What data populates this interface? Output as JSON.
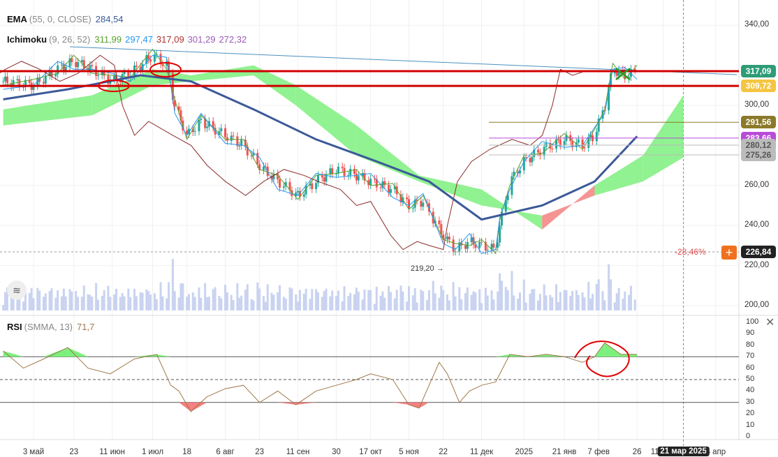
{
  "legend": {
    "ema": {
      "name": "EMA",
      "params": "(55, 0, CLOSE)",
      "value": "284,54"
    },
    "ichimoku": {
      "name": "Ichimoku",
      "params": "(9, 26, 52)",
      "values": [
        "311,99",
        "297,47",
        "317,09",
        "301,29",
        "272,32"
      ]
    },
    "rsi": {
      "name": "RSI",
      "params": "(SMMA, 13)",
      "value": "71,7"
    }
  },
  "colors": {
    "up": "#26a69a",
    "down": "#ef5350",
    "ema": "#3b5998",
    "tenkan": "#5aa02c",
    "kijun": "#2196f3",
    "chikou": "#8b2a2a",
    "cloud_up": "#7cf07c",
    "cloud_down": "#f48080",
    "rsi": "#a0784a",
    "drawing": "#e00000"
  },
  "price_tags": [
    {
      "value": "317,09",
      "color": "#2e9c77"
    },
    {
      "value": "309,72",
      "color": "#f5c542"
    },
    {
      "value": "291,56",
      "color": "#8b7a2a"
    },
    {
      "value": "283,66",
      "color": "#b94bd9"
    },
    {
      "value": "280,12",
      "color": "#bbbbbb"
    },
    {
      "value": "275,26",
      "color": "#bbbbbb"
    },
    {
      "value": "226,84",
      "color": "#222222"
    }
  ],
  "change_label": "-28,46%",
  "low_label": "219,20 →",
  "chart_data": {
    "type": "line",
    "yticks": [
      "340,00",
      "300,00",
      "260,00",
      "240,00",
      "220,00",
      "200,00"
    ],
    "yticks_values": [
      340,
      300,
      260,
      240,
      220,
      200
    ],
    "xticks": [
      "3 май",
      "23",
      "11 июн",
      "1 июл",
      "18",
      "6 авг",
      "23",
      "11 сен",
      "30",
      "17 окт",
      "5 ноя",
      "22",
      "11 дек",
      "2025",
      "21 янв",
      "7 фев",
      "26",
      "11 мар",
      "21 мар 2025",
      "6 апр"
    ],
    "xticks_dates": [
      "2024-05-03",
      "2024-05-23",
      "2024-06-11",
      "2024-07-01",
      "2024-07-18",
      "2024-08-06",
      "2024-08-23",
      "2024-09-11",
      "2024-09-30",
      "2024-10-17",
      "2024-11-05",
      "2024-11-22",
      "2024-12-11",
      "2025-01-01",
      "2025-01-21",
      "2025-02-07",
      "2025-02-26",
      "2025-03-11",
      "2025-03-21",
      "2025-04-06"
    ],
    "price": [
      [
        "2024-04-18",
        312
      ],
      [
        "2024-05-03",
        310
      ],
      [
        "2024-05-15",
        318
      ],
      [
        "2024-05-23",
        322
      ],
      [
        "2024-06-01",
        318
      ],
      [
        "2024-06-11",
        312
      ],
      [
        "2024-06-20",
        316
      ],
      [
        "2024-07-01",
        325
      ],
      [
        "2024-07-08",
        320
      ],
      [
        "2024-07-12",
        300
      ],
      [
        "2024-07-18",
        285
      ],
      [
        "2024-07-25",
        292
      ],
      [
        "2024-08-06",
        285
      ],
      [
        "2024-08-15",
        280
      ],
      [
        "2024-08-23",
        270
      ],
      [
        "2024-09-01",
        262
      ],
      [
        "2024-09-11",
        255
      ],
      [
        "2024-09-20",
        262
      ],
      [
        "2024-09-30",
        268
      ],
      [
        "2024-10-10",
        265
      ],
      [
        "2024-10-17",
        262
      ],
      [
        "2024-10-28",
        258
      ],
      [
        "2024-11-05",
        250
      ],
      [
        "2024-11-12",
        252
      ],
      [
        "2024-11-22",
        235
      ],
      [
        "2024-11-28",
        228
      ],
      [
        "2024-12-05",
        232
      ],
      [
        "2024-12-11",
        230
      ],
      [
        "2024-12-18",
        228
      ],
      [
        "2024-12-20",
        240
      ],
      [
        "2024-12-25",
        262
      ],
      [
        "2025-01-01",
        272
      ],
      [
        "2025-01-10",
        278
      ],
      [
        "2025-01-21",
        283
      ],
      [
        "2025-01-30",
        280
      ],
      [
        "2025-02-05",
        285
      ],
      [
        "2025-02-10",
        300
      ],
      [
        "2025-02-14",
        318
      ],
      [
        "2025-02-20",
        315
      ],
      [
        "2025-02-26",
        317
      ]
    ],
    "ema": [
      [
        "2024-04-18",
        303
      ],
      [
        "2024-05-20",
        308
      ],
      [
        "2024-06-25",
        315
      ],
      [
        "2024-07-20",
        312
      ],
      [
        "2024-08-20",
        298
      ],
      [
        "2024-09-20",
        283
      ],
      [
        "2024-10-20",
        272
      ],
      [
        "2024-11-15",
        262
      ],
      [
        "2024-12-11",
        243
      ],
      [
        "2025-01-10",
        250
      ],
      [
        "2025-02-05",
        262
      ],
      [
        "2025-02-26",
        284.54
      ]
    ],
    "cloud_span_a": [
      [
        "2024-04-18",
        298
      ],
      [
        "2024-06-01",
        305
      ],
      [
        "2024-07-01",
        318
      ],
      [
        "2024-07-20",
        315
      ],
      [
        "2024-08-20",
        320
      ],
      [
        "2024-09-10",
        310
      ],
      [
        "2024-10-10",
        290
      ],
      [
        "2024-11-10",
        265
      ],
      [
        "2024-12-11",
        258
      ],
      [
        "2025-01-10",
        238
      ],
      [
        "2025-02-05",
        260
      ],
      [
        "2025-03-01",
        275
      ],
      [
        "2025-03-21",
        305
      ]
    ],
    "cloud_span_b": [
      [
        "2024-04-18",
        290
      ],
      [
        "2024-06-01",
        295
      ],
      [
        "2024-07-01",
        310
      ],
      [
        "2024-07-20",
        312
      ],
      [
        "2024-08-20",
        315
      ],
      [
        "2024-09-10",
        300
      ],
      [
        "2024-10-10",
        275
      ],
      [
        "2024-11-10",
        262
      ],
      [
        "2024-12-11",
        250
      ],
      [
        "2025-01-10",
        245
      ],
      [
        "2025-02-05",
        255
      ],
      [
        "2025-03-01",
        262
      ],
      [
        "2025-03-21",
        274
      ]
    ],
    "hlines": [
      317.09,
      309.72,
      291.56,
      283.66,
      280.12,
      275.26,
      226.84
    ],
    "low": 219.2,
    "rsi": {
      "ylim": [
        0,
        100
      ],
      "levels": [
        70,
        50,
        30
      ],
      "yticks": [
        "100",
        "90",
        "80",
        "70",
        "60",
        "50",
        "40",
        "30",
        "20",
        "10",
        "0"
      ],
      "values": [
        [
          "2024-04-18",
          75
        ],
        [
          "2024-04-28",
          60
        ],
        [
          "2024-05-08",
          68
        ],
        [
          "2024-05-20",
          78
        ],
        [
          "2024-05-30",
          60
        ],
        [
          "2024-06-10",
          55
        ],
        [
          "2024-06-22",
          68
        ],
        [
          "2024-07-03",
          72
        ],
        [
          "2024-07-10",
          45
        ],
        [
          "2024-07-14",
          40
        ],
        [
          "2024-07-20",
          22
        ],
        [
          "2024-07-28",
          35
        ],
        [
          "2024-08-06",
          42
        ],
        [
          "2024-08-15",
          45
        ],
        [
          "2024-08-23",
          30
        ],
        [
          "2024-09-01",
          40
        ],
        [
          "2024-09-10",
          28
        ],
        [
          "2024-09-20",
          40
        ],
        [
          "2024-09-30",
          45
        ],
        [
          "2024-10-10",
          50
        ],
        [
          "2024-10-17",
          55
        ],
        [
          "2024-10-28",
          50
        ],
        [
          "2024-11-05",
          28
        ],
        [
          "2024-11-10",
          25
        ],
        [
          "2024-11-15",
          45
        ],
        [
          "2024-11-20",
          65
        ],
        [
          "2024-11-24",
          55
        ],
        [
          "2024-11-30",
          30
        ],
        [
          "2024-12-05",
          40
        ],
        [
          "2024-12-11",
          45
        ],
        [
          "2024-12-18",
          48
        ],
        [
          "2024-12-25",
          72
        ],
        [
          "2025-01-03",
          70
        ],
        [
          "2025-01-12",
          72
        ],
        [
          "2025-01-21",
          70
        ],
        [
          "2025-01-30",
          65
        ],
        [
          "2025-02-05",
          70
        ],
        [
          "2025-02-10",
          82
        ],
        [
          "2025-02-18",
          72
        ],
        [
          "2025-02-26",
          72
        ]
      ]
    }
  }
}
